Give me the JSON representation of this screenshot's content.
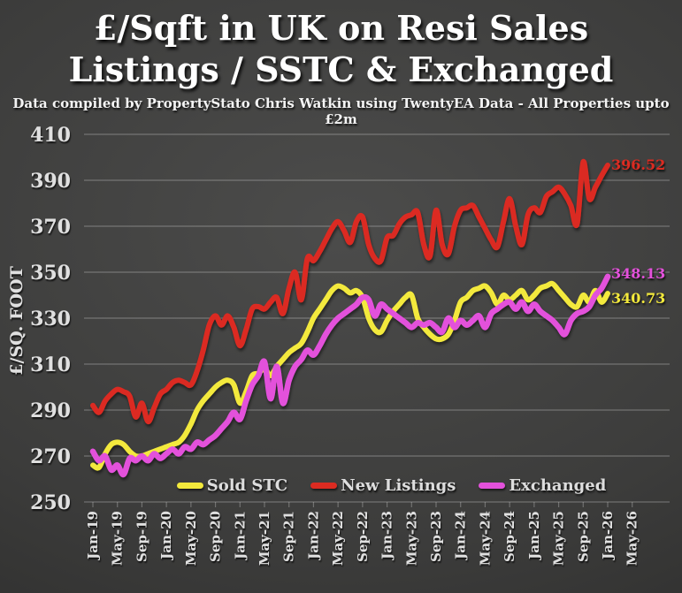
{
  "title": {
    "line1": "£/Sqft in UK on Resi Sales",
    "line2": "Listings / SSTC & Exchanged"
  },
  "subtitle": "Data compiled by PropertyStato Chris Watkin using TwentyEA Data - All Properties upto £2m",
  "chart_data": {
    "type": "line",
    "title": "£/Sqft in UK on Resi Sales Listings / SSTC & Exchanged",
    "ylabel": "£/SQ. FOOT",
    "ylim": [
      250,
      410
    ],
    "y_ticks": [
      250,
      270,
      290,
      310,
      330,
      350,
      370,
      390,
      410
    ],
    "x_tick_labels": [
      "Jan-19",
      "May-19",
      "Sep-19",
      "Jan-20",
      "May-20",
      "Sep-20",
      "Jan-21",
      "May-21",
      "Sep-21",
      "Jan-22",
      "May-22",
      "Sep-22",
      "Jan-23",
      "May-23",
      "Sep-23",
      "Jan-24",
      "May-24",
      "Sep-24",
      "Jan-25",
      "May-25",
      "Sep-25",
      "Jan-26",
      "May-26"
    ],
    "months_per_tick": 4,
    "x_start_month": "Jan-19",
    "x_end_data_month": "Jan-26",
    "grid": "horizontal",
    "legend_position": "bottom",
    "colors": {
      "background_center": "#4c4c4b",
      "background_edge": "#262625",
      "grid": "rgba(225,225,225,0.32)",
      "axis_text": "#e0e0e0",
      "title_text": "#ffffff"
    },
    "series": [
      {
        "name": "Sold STC",
        "color": "#f3e93c",
        "end_label": "340.73",
        "values": [
          266,
          265,
          271,
          275,
          276,
          275,
          272,
          270,
          270,
          271,
          272,
          273,
          274,
          275,
          276,
          279,
          284,
          290,
          294,
          297,
          300,
          302,
          303,
          301,
          293,
          298,
          305,
          306,
          308,
          305,
          309,
          312,
          315,
          317,
          319,
          324,
          330,
          334,
          338,
          342,
          344,
          343,
          341,
          342,
          339,
          330,
          325,
          324,
          329,
          333,
          336,
          339,
          340,
          330,
          326,
          323,
          321,
          321,
          323,
          329,
          337,
          339,
          342,
          343,
          344,
          341,
          336,
          340,
          338,
          340,
          342,
          338,
          340,
          343,
          344,
          345,
          342,
          339,
          336,
          335,
          340,
          337,
          342,
          337,
          340.73
        ]
      },
      {
        "name": "New Listings",
        "color": "#db2b21",
        "end_label": "396.52",
        "values": [
          292,
          289,
          294,
          297,
          299,
          298,
          296,
          287,
          293,
          285,
          291,
          297,
          299,
          302,
          303,
          302,
          301,
          307,
          316,
          327,
          331,
          327,
          331,
          326,
          318,
          325,
          334,
          335,
          334,
          337,
          339,
          332,
          343,
          350,
          338,
          356,
          355,
          359,
          364,
          369,
          372,
          368,
          363,
          372,
          374,
          362,
          356,
          355,
          365,
          366,
          371,
          374,
          375,
          376,
          362,
          357,
          377,
          362,
          358,
          370,
          377,
          378,
          379,
          374,
          369,
          364,
          361,
          372,
          382,
          370,
          362,
          375,
          378,
          376,
          383,
          385,
          387,
          384,
          379,
          371,
          398,
          382,
          387,
          392,
          396.52
        ]
      },
      {
        "name": "Exchanged",
        "color": "#e351db",
        "end_label": "348.13",
        "values": [
          272,
          268,
          270,
          264,
          266,
          262,
          269,
          268,
          270,
          268,
          271,
          269,
          271,
          273,
          271,
          274,
          273,
          276,
          275,
          277,
          279,
          282,
          285,
          289,
          286,
          294,
          301,
          305,
          311,
          295,
          309,
          293,
          303,
          309,
          312,
          316,
          314,
          318,
          323,
          327,
          330,
          332,
          334,
          336,
          339,
          338,
          331,
          336,
          334,
          332,
          330,
          328,
          326,
          328,
          327,
          328,
          326,
          324,
          330,
          326,
          329,
          327,
          329,
          331,
          326,
          332,
          334,
          336,
          337,
          334,
          337,
          333,
          336,
          333,
          331,
          329,
          326,
          323,
          329,
          332,
          333,
          335,
          340,
          343,
          348.13
        ]
      }
    ]
  }
}
